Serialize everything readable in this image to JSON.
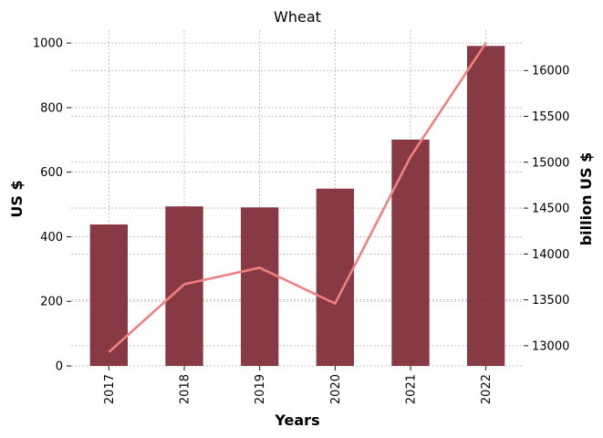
{
  "chart_data": {
    "type": "bar",
    "title": "Wheat",
    "xlabel": "Years",
    "ylabel_left": "US $",
    "ylabel_right": "billion US $",
    "categories": [
      "2017",
      "2018",
      "2019",
      "2020",
      "2021",
      "2022"
    ],
    "series": [
      {
        "type": "bar",
        "axis": "left",
        "values": [
          438,
          494,
          491,
          549,
          701,
          991
        ],
        "color": "#7b2530"
      },
      {
        "type": "line",
        "axis": "right",
        "values": [
          12930,
          13670,
          13850,
          13460,
          15060,
          16300
        ],
        "color": "#f08080"
      }
    ],
    "ylim_left": [
      0,
      1040
    ],
    "ylim_right": [
      12780,
      16440
    ],
    "yticks_left": [
      0,
      200,
      400,
      600,
      800,
      1000
    ],
    "yticks_right": [
      13000,
      13500,
      14000,
      14500,
      15000,
      15500,
      16000
    ],
    "grid": true
  }
}
